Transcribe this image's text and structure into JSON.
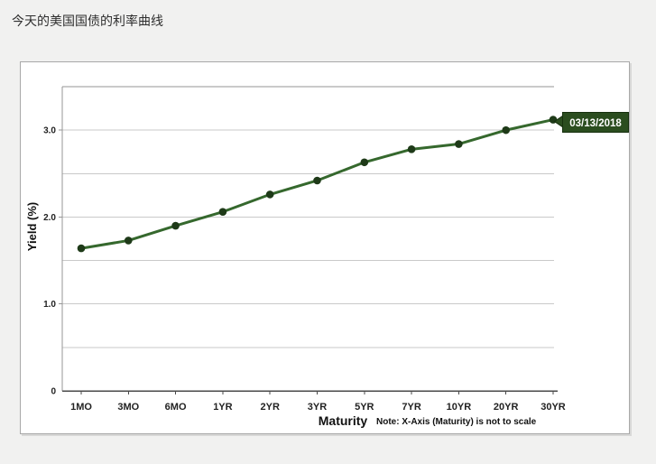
{
  "page": {
    "title": "今天的美国国债的利率曲线"
  },
  "chart_data": {
    "type": "line",
    "title": "",
    "categories": [
      "1MO",
      "3MO",
      "6MO",
      "1YR",
      "2YR",
      "3YR",
      "5YR",
      "7YR",
      "10YR",
      "20YR",
      "30YR"
    ],
    "series": [
      {
        "name": "03/13/2018",
        "values": [
          1.64,
          1.73,
          1.9,
          2.06,
          2.26,
          2.42,
          2.63,
          2.78,
          2.84,
          3.0,
          3.12
        ]
      }
    ],
    "date_label": "03/13/2018",
    "xlabel": "Maturity",
    "ylabel": "Yield (%)",
    "note": "Note: X-Axis (Maturity) is not to scale",
    "ylim": [
      0,
      3.5
    ],
    "grid_step": 0.5,
    "grid": true,
    "yticks": [
      {
        "value": 0,
        "label": "0"
      },
      {
        "value": 1,
        "label": "1.0"
      },
      {
        "value": 2,
        "label": "2.0"
      },
      {
        "value": 3,
        "label": "3.0"
      }
    ],
    "legend_position": "callout-at-last-point",
    "colors": {
      "line": "#35682d",
      "point": "#1e3a18",
      "label_bg": "#2b4d1f",
      "label_border": "#16300e",
      "label_text": "#ffffff",
      "grid": "#c9c9c9",
      "axis": "#969696",
      "baseline": "#4a4a4a",
      "text": "#222222"
    }
  }
}
